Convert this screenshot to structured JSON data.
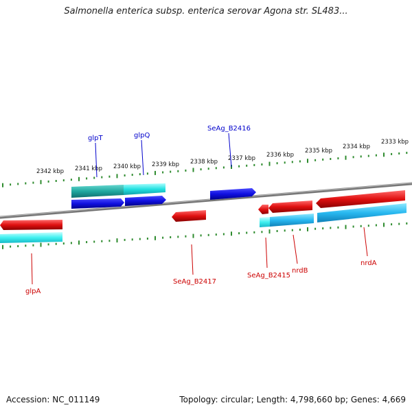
{
  "title": "Salmonella enterica subsp. enterica serovar Agona str. SL483...",
  "footer": {
    "accession": "Accession: NC_011149",
    "summary": "Topology: circular; Length: 4,798,660 bp; Genes: 4,669"
  },
  "colors": {
    "backbone": "#7a7a7a",
    "tick": "#2e8b2e",
    "forward_label": "#0000cc",
    "reverse_label": "#cc0000",
    "cds_forward": "#1010e0",
    "cds_reverse": "#e01010",
    "gene_forward": "#22c8c8",
    "gene_reverse": "#28b8f0"
  },
  "scale_labels": [
    "2342 kbp",
    "2341 kbp",
    "2340 kbp",
    "2339 kbp",
    "2338 kbp",
    "2337 kbp",
    "2336 kbp",
    "2335 kbp",
    "2334 kbp",
    "2333 kbp"
  ],
  "forward_genes": [
    "glpT",
    "glpQ",
    "SeAg_B2416"
  ],
  "reverse_genes": [
    "glpA",
    "SeAg_B2417",
    "SeAg_B2415",
    "nrdB",
    "nrdA"
  ]
}
